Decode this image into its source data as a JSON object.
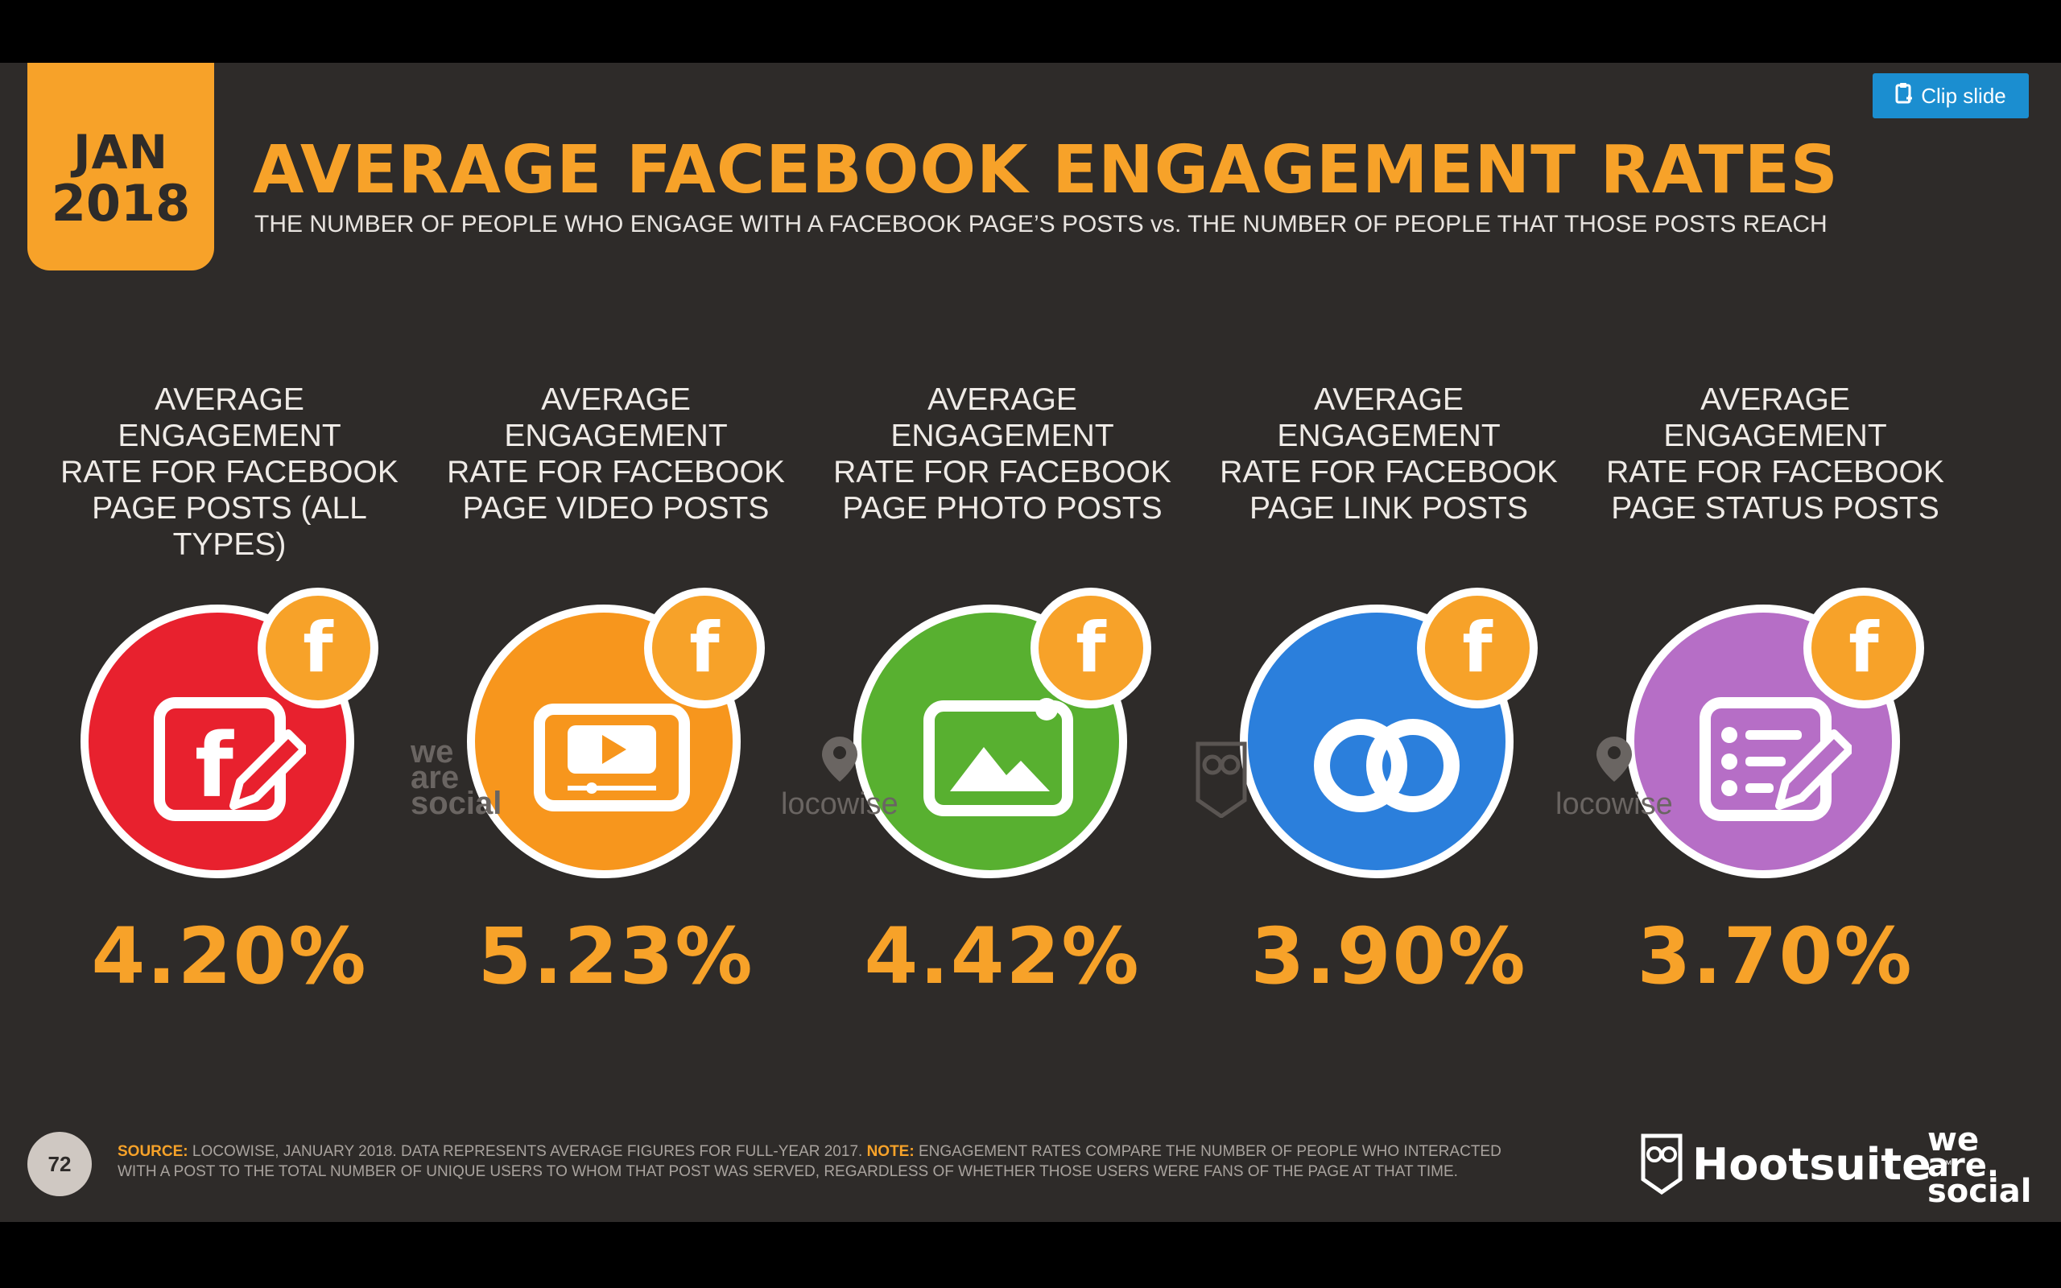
{
  "slide": {
    "date_month": "JAN",
    "date_year": "2018",
    "title": "AVERAGE FACEBOOK ENGAGEMENT RATES",
    "subtitle": "THE NUMBER OF PEOPLE WHO ENGAGE WITH A FACEBOOK PAGE’S POSTS vs. THE NUMBER OF PEOPLE THAT THOSE POSTS REACH",
    "page_number": "72"
  },
  "clip_button": {
    "label": "Clip slide",
    "color": "#1b8ed0"
  },
  "colors": {
    "accent": "#f7a229",
    "background": "#2e2b29"
  },
  "columns": [
    {
      "label": "AVERAGE ENGAGEMENT\nRATE FOR FACEBOOK\nPAGE POSTS (ALL TYPES)",
      "value": "4.20%",
      "circle_color": "#e8212e",
      "icon": "facebook-post-edit-icon"
    },
    {
      "label": "AVERAGE ENGAGEMENT\nRATE FOR FACEBOOK\nPAGE VIDEO POSTS",
      "value": "5.23%",
      "circle_color": "#f7961d",
      "icon": "video-player-icon"
    },
    {
      "label": "AVERAGE ENGAGEMENT\nRATE FOR FACEBOOK\nPAGE PHOTO POSTS",
      "value": "4.42%",
      "circle_color": "#58b030",
      "icon": "photo-icon"
    },
    {
      "label": "AVERAGE ENGAGEMENT\nRATE FOR FACEBOOK\nPAGE LINK POSTS",
      "value": "3.90%",
      "circle_color": "#2b7fdc",
      "icon": "link-icon"
    },
    {
      "label": "AVERAGE ENGAGEMENT\nRATE FOR FACEBOOK\nPAGE STATUS POSTS",
      "value": "3.70%",
      "circle_color": "#b66ec6",
      "icon": "status-list-edit-icon"
    }
  ],
  "badge_glyph": "f",
  "watermarks": {
    "we_are_social": [
      "we",
      "are",
      "social"
    ],
    "locowise": "locowise"
  },
  "footer": {
    "source_label": "SOURCE:",
    "source_text": " LOCOWISE, JANUARY 2018. DATA REPRESENTS AVERAGE FIGURES FOR FULL-YEAR 2017. ",
    "note_label": "NOTE:",
    "note_text": " ENGAGEMENT RATES COMPARE THE NUMBER OF PEOPLE WHO INTERACTED WITH A POST TO THE TOTAL NUMBER OF UNIQUE USERS TO WHOM THAT POST WAS SERVED, REGARDLESS OF WHETHER THOSE USERS WERE FANS OF THE PAGE AT THAT TIME."
  },
  "logos": {
    "hootsuite": "Hootsuite",
    "trademark": "™",
    "we_are_social": [
      "we",
      "are.",
      "social"
    ]
  }
}
